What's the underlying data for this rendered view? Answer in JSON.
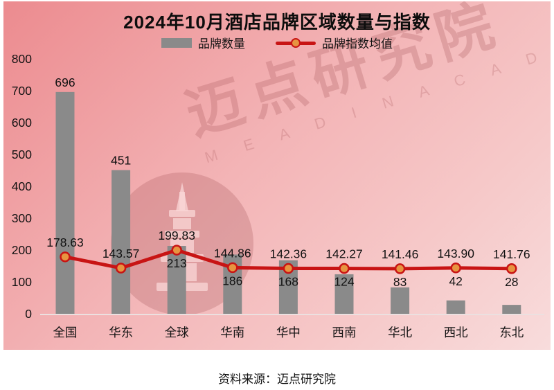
{
  "title": "2024年10月酒店品牌区域数量与指数",
  "legend": {
    "bars_label": "品牌数量",
    "line_label": "品牌指数均值"
  },
  "watermark": {
    "text": "迈点研究院",
    "subtext": "M E A D I N   A C A D E M Y",
    "logo": "pagoda-tower-icon"
  },
  "source": "资料来源：迈点研究院",
  "colors": {
    "bar": "#8a8a8a",
    "line": "#c81414",
    "marker_fill": "#e79440",
    "label": "#111111",
    "axis_line": "#ece0e0",
    "bg_gradient_start": "#ec8b8f",
    "bg_gradient_end": "#f8dcdc"
  },
  "chart_data": {
    "type": "bar",
    "title": "2024年10月酒店品牌区域数量与指数",
    "categories": [
      "全国",
      "华东",
      "全球",
      "华南",
      "华中",
      "西南",
      "华北",
      "西北",
      "东北"
    ],
    "series": [
      {
        "name": "品牌数量",
        "type": "bar",
        "values": [
          696,
          451,
          213,
          186,
          168,
          124,
          83,
          42,
          28
        ],
        "labels": [
          "696",
          "451",
          "213",
          "186",
          "168",
          "124",
          "83",
          "42",
          "28"
        ]
      },
      {
        "name": "品牌指数均值",
        "type": "line",
        "values": [
          178.63,
          143.57,
          199.83,
          144.86,
          142.36,
          142.27,
          141.46,
          143.9,
          141.76
        ],
        "labels": [
          "178.63",
          "143.57",
          "199.83",
          "144.86",
          "142.36",
          "142.27",
          "141.46",
          "143.90",
          "141.76"
        ]
      }
    ],
    "xlabel": "",
    "ylabel": "",
    "ylim": [
      0,
      800
    ],
    "ytick_step": 100,
    "grid": false,
    "legend_position": "top"
  }
}
